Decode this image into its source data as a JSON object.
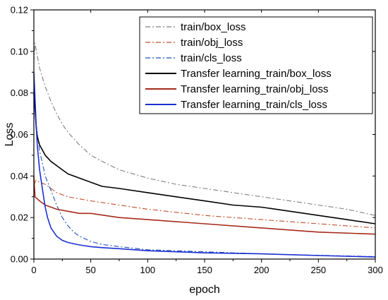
{
  "chart_data": {
    "type": "line",
    "title": "",
    "xlabel": "epoch",
    "ylabel": "Loss",
    "xlim": [
      0,
      300
    ],
    "ylim": [
      0,
      0.12
    ],
    "x_ticks": [
      0,
      50,
      100,
      150,
      200,
      250,
      300
    ],
    "y_ticks": [
      0.0,
      0.02,
      0.04,
      0.06,
      0.08,
      0.1,
      0.12
    ],
    "y_tick_labels": [
      "0.00",
      "0.02",
      "0.04",
      "0.06",
      "0.08",
      "0.10",
      "0.12"
    ],
    "grid": false,
    "legend_position": "top-right",
    "series": [
      {
        "name": "train/box_loss",
        "color": "#7f7f7f",
        "dash": "dashdot",
        "x": [
          0,
          1,
          3,
          5,
          10,
          15,
          20,
          25,
          30,
          40,
          50,
          60,
          75,
          100,
          125,
          150,
          175,
          200,
          225,
          250,
          275,
          300
        ],
        "y": [
          0.095,
          0.104,
          0.098,
          0.092,
          0.083,
          0.076,
          0.07,
          0.065,
          0.061,
          0.055,
          0.05,
          0.047,
          0.043,
          0.039,
          0.036,
          0.034,
          0.032,
          0.03,
          0.028,
          0.026,
          0.024,
          0.021
        ]
      },
      {
        "name": "train/obj_loss",
        "color": "#c0502a",
        "dash": "dashdot",
        "x": [
          0,
          2,
          5,
          10,
          20,
          30,
          40,
          50,
          75,
          100,
          150,
          200,
          250,
          300
        ],
        "y": [
          0.036,
          0.038,
          0.037,
          0.036,
          0.032,
          0.03,
          0.029,
          0.028,
          0.026,
          0.024,
          0.021,
          0.019,
          0.017,
          0.015
        ]
      },
      {
        "name": "train/cls_loss",
        "color": "#1f4fc0",
        "dash": "dashdot",
        "x": [
          0,
          2,
          5,
          8,
          10,
          15,
          20,
          25,
          30,
          35,
          40,
          50,
          60,
          75,
          100,
          150,
          200,
          250,
          300
        ],
        "y": [
          0.08,
          0.065,
          0.052,
          0.045,
          0.04,
          0.033,
          0.026,
          0.02,
          0.016,
          0.013,
          0.011,
          0.0085,
          0.007,
          0.006,
          0.0045,
          0.0035,
          0.0025,
          0.0018,
          0.0012
        ]
      },
      {
        "name": "Transfer learning_train/box_loss",
        "color": "#000000",
        "dash": "solid",
        "x": [
          0,
          1,
          2,
          3,
          5,
          8,
          10,
          15,
          20,
          25,
          30,
          40,
          50,
          60,
          75,
          100,
          125,
          150,
          175,
          200,
          225,
          250,
          275,
          300
        ],
        "y": [
          0.08,
          0.072,
          0.064,
          0.059,
          0.055,
          0.052,
          0.05,
          0.047,
          0.045,
          0.043,
          0.041,
          0.039,
          0.037,
          0.035,
          0.034,
          0.032,
          0.03,
          0.028,
          0.026,
          0.025,
          0.023,
          0.021,
          0.019,
          0.017
        ]
      },
      {
        "name": "Transfer learning_train/obj_loss",
        "color": "#a52a1a",
        "dash": "solid",
        "x": [
          0,
          1,
          3,
          5,
          10,
          20,
          30,
          40,
          50,
          75,
          100,
          150,
          200,
          250,
          300
        ],
        "y": [
          0.04,
          0.03,
          0.029,
          0.028,
          0.026,
          0.024,
          0.023,
          0.022,
          0.022,
          0.02,
          0.019,
          0.017,
          0.015,
          0.013,
          0.012
        ]
      },
      {
        "name": "Transfer learning_train/cls_loss",
        "color": "#1a2fd0",
        "dash": "solid",
        "x": [
          0,
          1,
          2,
          3,
          5,
          8,
          10,
          12,
          15,
          20,
          25,
          30,
          40,
          50,
          60,
          75,
          100,
          150,
          200,
          250,
          300
        ],
        "y": [
          0.09,
          0.078,
          0.065,
          0.055,
          0.043,
          0.032,
          0.025,
          0.02,
          0.015,
          0.011,
          0.009,
          0.008,
          0.0068,
          0.006,
          0.0055,
          0.005,
          0.004,
          0.003,
          0.0025,
          0.0017,
          0.001
        ]
      }
    ]
  }
}
